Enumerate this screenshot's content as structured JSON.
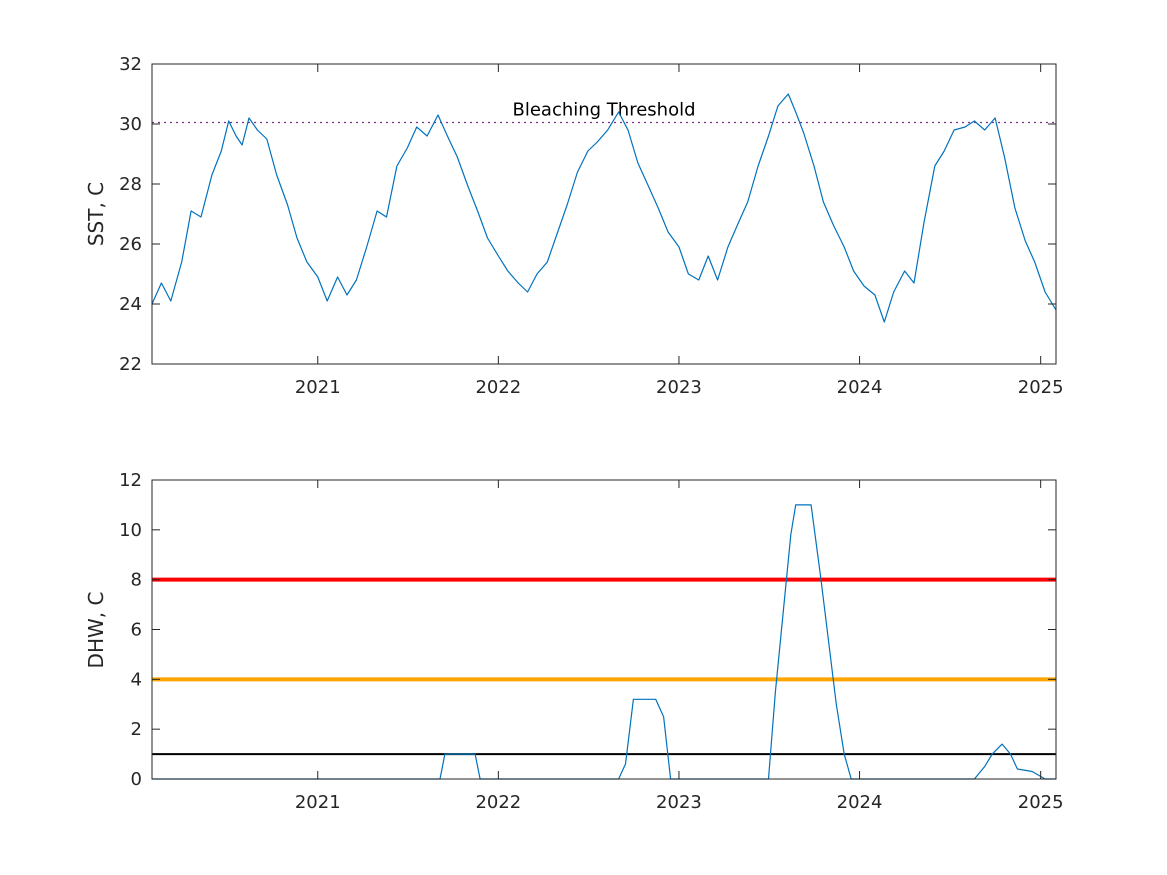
{
  "chart_data": [
    {
      "type": "line",
      "ylabel": "SST, C",
      "ylim": [
        22,
        32
      ],
      "yticks": [
        22,
        24,
        26,
        28,
        30,
        32
      ],
      "xlim": [
        "2020-02-01",
        "2025-02-01"
      ],
      "xticks": [
        "2021",
        "2022",
        "2023",
        "2024",
        "2025"
      ],
      "grid": false,
      "series": [
        {
          "color": "#0072BD",
          "points": [
            [
              "2020-02-01",
              24.0
            ],
            [
              "2020-02-20",
              24.7
            ],
            [
              "2020-03-10",
              24.1
            ],
            [
              "2020-04-01",
              25.4
            ],
            [
              "2020-04-20",
              27.1
            ],
            [
              "2020-05-10",
              26.9
            ],
            [
              "2020-06-01",
              28.3
            ],
            [
              "2020-06-20",
              29.1
            ],
            [
              "2020-07-05",
              30.1
            ],
            [
              "2020-07-20",
              29.6
            ],
            [
              "2020-08-01",
              29.3
            ],
            [
              "2020-08-15",
              30.2
            ],
            [
              "2020-09-01",
              29.8
            ],
            [
              "2020-09-20",
              29.5
            ],
            [
              "2020-10-10",
              28.3
            ],
            [
              "2020-11-01",
              27.3
            ],
            [
              "2020-11-20",
              26.2
            ],
            [
              "2020-12-10",
              25.4
            ],
            [
              "2021-01-01",
              24.9
            ],
            [
              "2021-01-20",
              24.1
            ],
            [
              "2021-02-10",
              24.9
            ],
            [
              "2021-03-01",
              24.3
            ],
            [
              "2021-03-20",
              24.8
            ],
            [
              "2021-04-10",
              25.9
            ],
            [
              "2021-05-01",
              27.1
            ],
            [
              "2021-05-20",
              26.9
            ],
            [
              "2021-06-10",
              28.6
            ],
            [
              "2021-07-01",
              29.2
            ],
            [
              "2021-07-20",
              29.9
            ],
            [
              "2021-08-10",
              29.6
            ],
            [
              "2021-09-01",
              30.3
            ],
            [
              "2021-09-20",
              29.6
            ],
            [
              "2021-10-10",
              28.9
            ],
            [
              "2021-11-01",
              27.9
            ],
            [
              "2021-11-20",
              27.1
            ],
            [
              "2021-12-10",
              26.2
            ],
            [
              "2022-01-01",
              25.6
            ],
            [
              "2022-01-20",
              25.1
            ],
            [
              "2022-02-10",
              24.7
            ],
            [
              "2022-03-01",
              24.4
            ],
            [
              "2022-03-20",
              25.0
            ],
            [
              "2022-04-10",
              25.4
            ],
            [
              "2022-05-01",
              26.4
            ],
            [
              "2022-05-20",
              27.3
            ],
            [
              "2022-06-10",
              28.4
            ],
            [
              "2022-07-01",
              29.1
            ],
            [
              "2022-07-20",
              29.4
            ],
            [
              "2022-08-10",
              29.8
            ],
            [
              "2022-09-01",
              30.4
            ],
            [
              "2022-09-20",
              29.8
            ],
            [
              "2022-10-10",
              28.7
            ],
            [
              "2022-11-01",
              27.9
            ],
            [
              "2022-11-20",
              27.2
            ],
            [
              "2022-12-10",
              26.4
            ],
            [
              "2023-01-01",
              25.9
            ],
            [
              "2023-01-20",
              25.0
            ],
            [
              "2023-02-10",
              24.8
            ],
            [
              "2023-03-01",
              25.6
            ],
            [
              "2023-03-20",
              24.8
            ],
            [
              "2023-04-10",
              25.9
            ],
            [
              "2023-05-01",
              26.7
            ],
            [
              "2023-05-20",
              27.4
            ],
            [
              "2023-06-10",
              28.6
            ],
            [
              "2023-07-01",
              29.6
            ],
            [
              "2023-07-20",
              30.6
            ],
            [
              "2023-08-10",
              31.0
            ],
            [
              "2023-08-25",
              30.4
            ],
            [
              "2023-09-10",
              29.7
            ],
            [
              "2023-10-01",
              28.6
            ],
            [
              "2023-10-20",
              27.4
            ],
            [
              "2023-11-10",
              26.6
            ],
            [
              "2023-12-01",
              25.9
            ],
            [
              "2023-12-20",
              25.1
            ],
            [
              "2024-01-10",
              24.6
            ],
            [
              "2024-02-01",
              24.3
            ],
            [
              "2024-02-20",
              23.4
            ],
            [
              "2024-03-10",
              24.4
            ],
            [
              "2024-04-01",
              25.1
            ],
            [
              "2024-04-20",
              24.7
            ],
            [
              "2024-05-10",
              26.7
            ],
            [
              "2024-06-01",
              28.6
            ],
            [
              "2024-06-20",
              29.1
            ],
            [
              "2024-07-10",
              29.8
            ],
            [
              "2024-08-01",
              29.9
            ],
            [
              "2024-08-20",
              30.1
            ],
            [
              "2024-09-10",
              29.8
            ],
            [
              "2024-10-01",
              30.2
            ],
            [
              "2024-10-20",
              28.9
            ],
            [
              "2024-11-10",
              27.2
            ],
            [
              "2024-12-01",
              26.1
            ],
            [
              "2024-12-20",
              25.4
            ],
            [
              "2025-01-10",
              24.4
            ],
            [
              "2025-02-01",
              23.8
            ]
          ]
        }
      ],
      "reference_lines": [
        {
          "y": 30.05,
          "color": "#7E2F8E",
          "style": "dotted",
          "label": "Bleaching Threshold"
        }
      ]
    },
    {
      "type": "line",
      "ylabel": "DHW, C",
      "ylim": [
        0,
        12
      ],
      "yticks": [
        0,
        2,
        4,
        6,
        8,
        10,
        12
      ],
      "xlim": [
        "2020-02-01",
        "2025-02-01"
      ],
      "xticks": [
        "2021",
        "2022",
        "2023",
        "2024",
        "2025"
      ],
      "grid": false,
      "series": [
        {
          "color": "#0072BD",
          "points": [
            [
              "2020-02-01",
              0.0
            ],
            [
              "2021-09-05",
              0.0
            ],
            [
              "2021-09-15",
              1.0
            ],
            [
              "2021-11-15",
              1.0
            ],
            [
              "2021-11-25",
              0.0
            ],
            [
              "2022-09-01",
              0.0
            ],
            [
              "2022-09-15",
              0.6
            ],
            [
              "2022-10-01",
              3.2
            ],
            [
              "2022-11-15",
              3.2
            ],
            [
              "2022-12-01",
              2.5
            ],
            [
              "2022-12-15",
              0.0
            ],
            [
              "2023-07-01",
              0.0
            ],
            [
              "2023-07-15",
              3.5
            ],
            [
              "2023-08-15",
              9.8
            ],
            [
              "2023-08-25",
              11.0
            ],
            [
              "2023-09-25",
              11.0
            ],
            [
              "2023-10-15",
              8.0
            ],
            [
              "2023-11-15",
              3.0
            ],
            [
              "2023-12-01",
              1.0
            ],
            [
              "2023-12-15",
              0.0
            ],
            [
              "2024-08-20",
              0.0
            ],
            [
              "2024-09-10",
              0.5
            ],
            [
              "2024-09-25",
              1.0
            ],
            [
              "2024-10-15",
              1.4
            ],
            [
              "2024-11-01",
              1.0
            ],
            [
              "2024-11-15",
              0.4
            ],
            [
              "2024-12-15",
              0.3
            ],
            [
              "2025-01-10",
              0.0
            ],
            [
              "2025-02-01",
              0.0
            ]
          ]
        }
      ],
      "reference_lines": [
        {
          "y": 8,
          "color": "#FF0000",
          "style": "solid"
        },
        {
          "y": 4,
          "color": "#FFA500",
          "style": "solid"
        },
        {
          "y": 1,
          "color": "#000000",
          "style": "solid"
        }
      ]
    }
  ]
}
